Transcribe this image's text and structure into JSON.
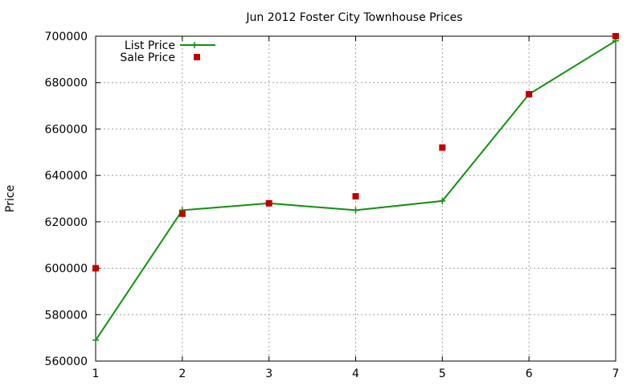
{
  "chart_data": {
    "type": "line",
    "title": "Jun 2012 Foster City Townhouse Prices",
    "xlabel": "",
    "ylabel": "Price",
    "x": [
      1,
      2,
      3,
      4,
      5,
      6,
      7
    ],
    "xlim": [
      1,
      7
    ],
    "ylim": [
      560000,
      700000
    ],
    "xticks": [
      1,
      2,
      3,
      4,
      5,
      6,
      7
    ],
    "yticks": [
      560000,
      580000,
      600000,
      620000,
      640000,
      660000,
      680000,
      700000
    ],
    "grid": true,
    "legend_position": "top-left",
    "series": [
      {
        "name": "List Price",
        "style": "line-with-cross-markers",
        "color": "#109010",
        "values": [
          569000,
          625000,
          628000,
          625000,
          629000,
          675000,
          698000
        ]
      },
      {
        "name": "Sale Price",
        "style": "square-markers",
        "color": "#c00000",
        "values": [
          600000,
          623500,
          628000,
          631000,
          652000,
          675000,
          700000
        ]
      }
    ]
  }
}
